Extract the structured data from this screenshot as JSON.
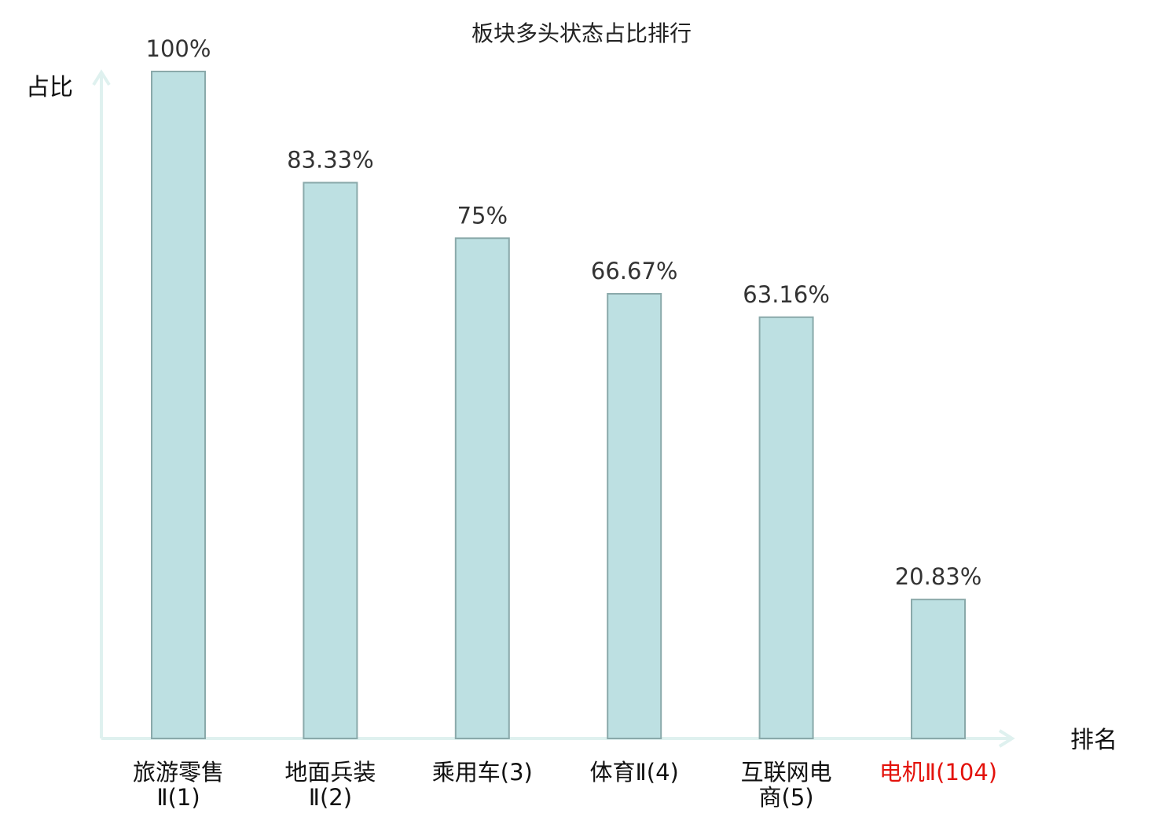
{
  "chart_data": {
    "type": "bar",
    "title": "板块多头状态占比排行",
    "ylabel": "占比",
    "xlabel": "排名",
    "ylim": [
      0,
      100
    ],
    "grid": false,
    "categories": [
      {
        "name_lines": [
          "旅游零售",
          "Ⅱ(1)"
        ],
        "highlight": false
      },
      {
        "name_lines": [
          "地面兵装",
          "Ⅱ(2)"
        ],
        "highlight": false
      },
      {
        "name_lines": [
          "乘用车(3)"
        ],
        "highlight": false
      },
      {
        "name_lines": [
          "体育Ⅱ(4)"
        ],
        "highlight": false
      },
      {
        "name_lines": [
          "互联网电",
          "商(5)"
        ],
        "highlight": false
      },
      {
        "name_lines": [
          "电机Ⅱ(104)"
        ],
        "highlight": true
      }
    ],
    "values": [
      100,
      83.33,
      75,
      66.67,
      63.16,
      20.83
    ],
    "value_labels": [
      "100%",
      "83.33%",
      "75%",
      "66.67%",
      "63.16%",
      "20.83%"
    ],
    "colors": {
      "bar_fill": "#bde0e2",
      "bar_stroke": "#8aa9aa",
      "axis": "#dff1ef",
      "text": "#333333",
      "highlight_text": "#e3120b"
    }
  }
}
